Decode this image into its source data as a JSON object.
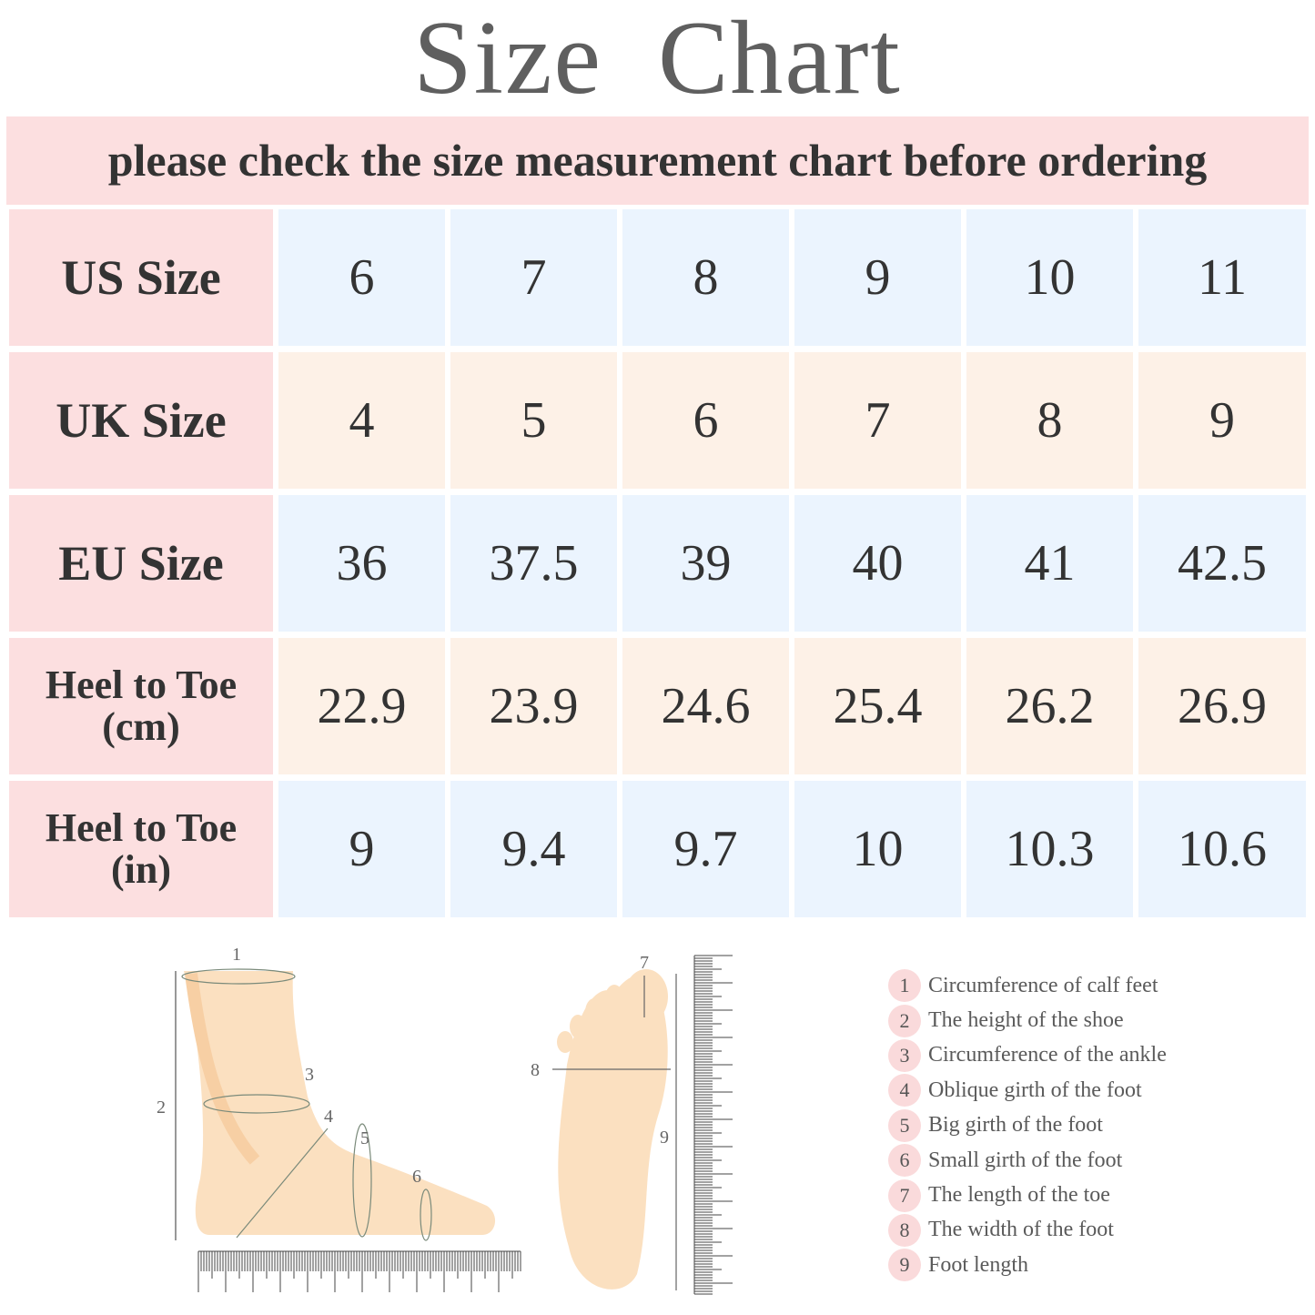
{
  "title": "Size  Chart",
  "banner": "please check the size measurement chart before ordering",
  "table": {
    "rows": [
      {
        "label": "US Size",
        "values": [
          "6",
          "7",
          "8",
          "9",
          "10",
          "11"
        ]
      },
      {
        "label": "UK Size",
        "values": [
          "4",
          "5",
          "6",
          "7",
          "8",
          "9"
        ]
      },
      {
        "label": "EU Size",
        "values": [
          "36",
          "37.5",
          "39",
          "40",
          "41",
          "42.5"
        ]
      },
      {
        "label": "Heel to Toe (cm)",
        "values": [
          "22.9",
          "23.9",
          "24.6",
          "25.4",
          "26.2",
          "26.9"
        ]
      },
      {
        "label": "Heel to Toe (in)",
        "values": [
          "9",
          "9.4",
          "9.7",
          "10",
          "10.3",
          "10.6"
        ]
      }
    ]
  },
  "diagram_labels": [
    "1",
    "2",
    "3",
    "4",
    "5",
    "6",
    "7",
    "8",
    "9"
  ],
  "legend": [
    {
      "num": "1",
      "text": "Circumference of calf feet"
    },
    {
      "num": "2",
      "text": "The height of the shoe"
    },
    {
      "num": "3",
      "text": "Circumference of the ankle"
    },
    {
      "num": "4",
      "text": "Oblique girth of the foot"
    },
    {
      "num": "5",
      "text": "Big girth of the foot"
    },
    {
      "num": "6",
      "text": "Small girth of the foot"
    },
    {
      "num": "7",
      "text": "The length of the toe"
    },
    {
      "num": "8",
      "text": "The width of the foot"
    },
    {
      "num": "9",
      "text": "Foot length"
    }
  ],
  "colors": {
    "header": "#fcdfe0",
    "row_blue": "#ebf4fe",
    "row_peach": "#fdf1e7",
    "skin": "#fbe0c0"
  }
}
